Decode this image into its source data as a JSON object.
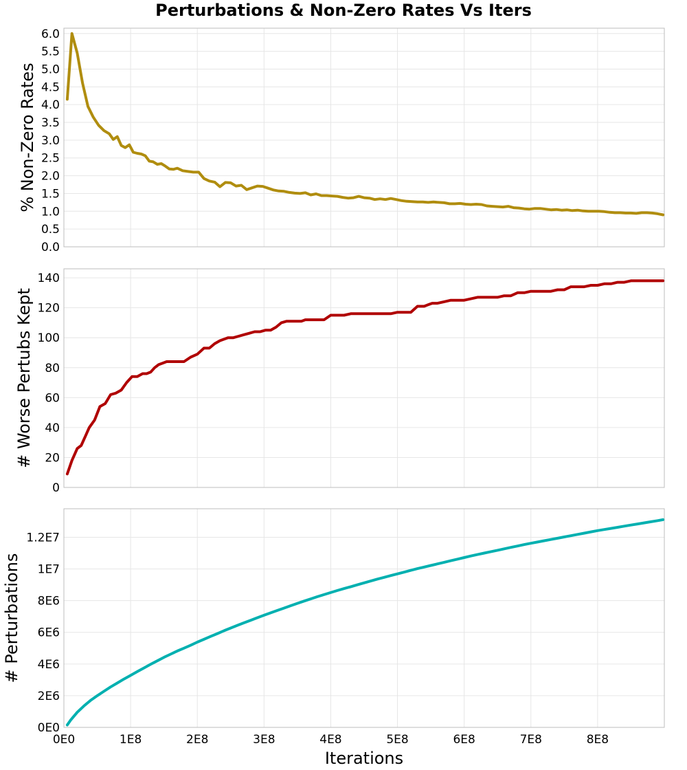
{
  "title": "Perturbations & Non-Zero Rates Vs Iters",
  "xlabel": "Iterations",
  "x_ticks": [
    "0E0",
    "1E8",
    "2E8",
    "3E8",
    "4E8",
    "5E8",
    "6E8",
    "7E8",
    "8E8"
  ],
  "chart_data": [
    {
      "type": "line",
      "ylabel": "% Non-Zero Rates",
      "color": "#b08d0f",
      "xlim": [
        0,
        900000000
      ],
      "ylim": [
        0,
        6.15
      ],
      "yticks": [
        0,
        0.5,
        1,
        1.5,
        2,
        2.5,
        3,
        3.5,
        4,
        4.5,
        5,
        5.5,
        6
      ],
      "ytick_labels": [
        "0.0",
        "0.5",
        "1.0",
        "1.5",
        "2.0",
        "2.5",
        "3.0",
        "3.5",
        "4.0",
        "4.5",
        "5.0",
        "5.5",
        "6.0"
      ],
      "x": [
        5000000,
        12000000,
        20000000,
        28000000,
        36000000,
        44000000,
        52000000,
        60000000,
        68000000,
        74000000,
        80000000,
        86000000,
        92000000,
        98000000,
        104000000,
        110000000,
        116000000,
        122000000,
        128000000,
        134000000,
        140000000,
        146000000,
        152000000,
        158000000,
        164000000,
        170000000,
        178000000,
        186000000,
        194000000,
        202000000,
        210000000,
        218000000,
        226000000,
        234000000,
        242000000,
        250000000,
        258000000,
        266000000,
        274000000,
        282000000,
        290000000,
        298000000,
        306000000,
        314000000,
        322000000,
        330000000,
        338000000,
        346000000,
        354000000,
        362000000,
        370000000,
        378000000,
        386000000,
        394000000,
        402000000,
        410000000,
        418000000,
        426000000,
        434000000,
        442000000,
        450000000,
        458000000,
        466000000,
        474000000,
        482000000,
        490000000,
        498000000,
        506000000,
        514000000,
        522000000,
        530000000,
        538000000,
        546000000,
        554000000,
        562000000,
        570000000,
        578000000,
        586000000,
        594000000,
        602000000,
        610000000,
        618000000,
        626000000,
        634000000,
        642000000,
        650000000,
        658000000,
        666000000,
        674000000,
        682000000,
        690000000,
        698000000,
        706000000,
        714000000,
        722000000,
        730000000,
        738000000,
        746000000,
        754000000,
        762000000,
        770000000,
        778000000,
        786000000,
        794000000,
        802000000,
        810000000,
        818000000,
        826000000,
        834000000,
        842000000,
        850000000,
        858000000,
        866000000,
        874000000,
        882000000,
        890000000,
        898000000
      ],
      "y": [
        4.15,
        6.0,
        5.45,
        4.6,
        3.95,
        3.65,
        3.42,
        3.27,
        3.18,
        3.02,
        3.1,
        2.85,
        2.79,
        2.87,
        2.66,
        2.63,
        2.61,
        2.56,
        2.41,
        2.39,
        2.32,
        2.34,
        2.27,
        2.19,
        2.18,
        2.21,
        2.14,
        2.12,
        2.1,
        2.1,
        1.92,
        1.85,
        1.82,
        1.69,
        1.81,
        1.8,
        1.71,
        1.73,
        1.61,
        1.66,
        1.71,
        1.7,
        1.65,
        1.6,
        1.57,
        1.56,
        1.53,
        1.51,
        1.5,
        1.52,
        1.46,
        1.49,
        1.44,
        1.44,
        1.43,
        1.42,
        1.39,
        1.37,
        1.38,
        1.42,
        1.38,
        1.37,
        1.33,
        1.35,
        1.33,
        1.36,
        1.33,
        1.3,
        1.28,
        1.27,
        1.26,
        1.26,
        1.25,
        1.26,
        1.25,
        1.24,
        1.21,
        1.21,
        1.22,
        1.2,
        1.19,
        1.2,
        1.19,
        1.15,
        1.14,
        1.13,
        1.12,
        1.14,
        1.1,
        1.09,
        1.07,
        1.06,
        1.08,
        1.08,
        1.06,
        1.04,
        1.05,
        1.03,
        1.04,
        1.02,
        1.03,
        1.01,
        1.0,
        1.0,
        1.0,
        0.99,
        0.97,
        0.96,
        0.96,
        0.95,
        0.95,
        0.94,
        0.96,
        0.96,
        0.95,
        0.93,
        0.9
      ]
    },
    {
      "type": "line",
      "ylabel": "# Worse Pertubs Kept",
      "color": "#b00000",
      "xlim": [
        0,
        900000000
      ],
      "ylim": [
        0,
        146
      ],
      "yticks": [
        0,
        20,
        40,
        60,
        80,
        100,
        120,
        140
      ],
      "ytick_labels": [
        "0",
        "20",
        "40",
        "60",
        "80",
        "100",
        "120",
        "140"
      ],
      "x": [
        5000000,
        12000000,
        20000000,
        26000000,
        32000000,
        38000000,
        46000000,
        54000000,
        62000000,
        70000000,
        78000000,
        86000000,
        94000000,
        102000000,
        110000000,
        118000000,
        124000000,
        130000000,
        136000000,
        142000000,
        148000000,
        154000000,
        160000000,
        166000000,
        172000000,
        180000000,
        190000000,
        200000000,
        210000000,
        218000000,
        226000000,
        234000000,
        240000000,
        246000000,
        254000000,
        262000000,
        270000000,
        278000000,
        286000000,
        294000000,
        302000000,
        310000000,
        318000000,
        326000000,
        334000000,
        342000000,
        350000000,
        356000000,
        362000000,
        370000000,
        380000000,
        390000000,
        400000000,
        410000000,
        420000000,
        430000000,
        440000000,
        450000000,
        460000000,
        470000000,
        480000000,
        490000000,
        500000000,
        510000000,
        520000000,
        530000000,
        540000000,
        546000000,
        552000000,
        560000000,
        570000000,
        580000000,
        590000000,
        600000000,
        610000000,
        620000000,
        630000000,
        640000000,
        650000000,
        660000000,
        670000000,
        680000000,
        690000000,
        700000000,
        710000000,
        720000000,
        730000000,
        740000000,
        750000000,
        760000000,
        770000000,
        780000000,
        790000000,
        800000000,
        810000000,
        820000000,
        830000000,
        840000000,
        850000000,
        860000000,
        870000000,
        880000000,
        898000000
      ],
      "y": [
        9,
        18,
        26,
        28,
        34,
        40,
        45,
        54,
        56,
        62,
        63,
        65,
        70,
        74,
        74,
        76,
        76,
        77,
        80,
        82,
        83,
        84,
        84,
        84,
        84,
        84,
        87,
        89,
        93,
        93,
        96,
        98,
        99,
        100,
        100,
        101,
        102,
        103,
        104,
        104,
        105,
        105,
        107,
        110,
        111,
        111,
        111,
        111,
        112,
        112,
        112,
        112,
        115,
        115,
        115,
        116,
        116,
        116,
        116,
        116,
        116,
        116,
        117,
        117,
        117,
        121,
        121,
        122,
        123,
        123,
        124,
        125,
        125,
        125,
        126,
        127,
        127,
        127,
        127,
        128,
        128,
        130,
        130,
        131,
        131,
        131,
        131,
        132,
        132,
        134,
        134,
        134,
        135,
        135,
        136,
        136,
        137,
        137,
        138,
        138,
        138,
        138,
        138
      ]
    },
    {
      "type": "line",
      "ylabel": "# Perturbations",
      "color": "#00b0b0",
      "xlim": [
        0,
        900000000
      ],
      "ylim": [
        0,
        13800000
      ],
      "yticks": [
        0,
        2000000,
        4000000,
        6000000,
        8000000,
        10000000,
        12000000
      ],
      "ytick_labels": [
        "0E0",
        "2E6",
        "4E6",
        "6E6",
        "8E6",
        "1E7",
        "1.2E7"
      ],
      "x": [
        5000000,
        10000000,
        20000000,
        30000000,
        40000000,
        50000000,
        60000000,
        70000000,
        80000000,
        90000000,
        100000000,
        110000000,
        120000000,
        130000000,
        140000000,
        150000000,
        160000000,
        170000000,
        180000000,
        190000000,
        200000000,
        210000000,
        220000000,
        230000000,
        240000000,
        250000000,
        260000000,
        270000000,
        280000000,
        290000000,
        300000000,
        310000000,
        320000000,
        330000000,
        340000000,
        350000000,
        360000000,
        370000000,
        380000000,
        390000000,
        400000000,
        410000000,
        420000000,
        430000000,
        440000000,
        450000000,
        460000000,
        470000000,
        480000000,
        490000000,
        500000000,
        510000000,
        520000000,
        530000000,
        540000000,
        550000000,
        560000000,
        570000000,
        580000000,
        590000000,
        600000000,
        610000000,
        620000000,
        630000000,
        640000000,
        650000000,
        660000000,
        670000000,
        680000000,
        690000000,
        700000000,
        710000000,
        720000000,
        730000000,
        740000000,
        750000000,
        760000000,
        770000000,
        780000000,
        790000000,
        800000000,
        810000000,
        820000000,
        830000000,
        840000000,
        850000000,
        860000000,
        870000000,
        880000000,
        890000000,
        898000000
      ],
      "y": [
        150000,
        450000,
        950000,
        1350000,
        1700000,
        2000000,
        2280000,
        2550000,
        2800000,
        3050000,
        3280000,
        3520000,
        3750000,
        3980000,
        4200000,
        4420000,
        4620000,
        4820000,
        5000000,
        5180000,
        5380000,
        5560000,
        5740000,
        5920000,
        6100000,
        6270000,
        6440000,
        6600000,
        6760000,
        6920000,
        7080000,
        7230000,
        7380000,
        7530000,
        7680000,
        7830000,
        7970000,
        8110000,
        8250000,
        8380000,
        8510000,
        8640000,
        8760000,
        8880000,
        9000000,
        9120000,
        9240000,
        9360000,
        9470000,
        9580000,
        9690000,
        9800000,
        9910000,
        10020000,
        10120000,
        10220000,
        10320000,
        10420000,
        10520000,
        10620000,
        10720000,
        10820000,
        10910000,
        11000000,
        11090000,
        11180000,
        11270000,
        11360000,
        11450000,
        11540000,
        11620000,
        11700000,
        11780000,
        11860000,
        11940000,
        12020000,
        12100000,
        12180000,
        12260000,
        12340000,
        12420000,
        12490000,
        12560000,
        12630000,
        12700000,
        12770000,
        12840000,
        12910000,
        12980000,
        13050000,
        13110000
      ]
    }
  ]
}
